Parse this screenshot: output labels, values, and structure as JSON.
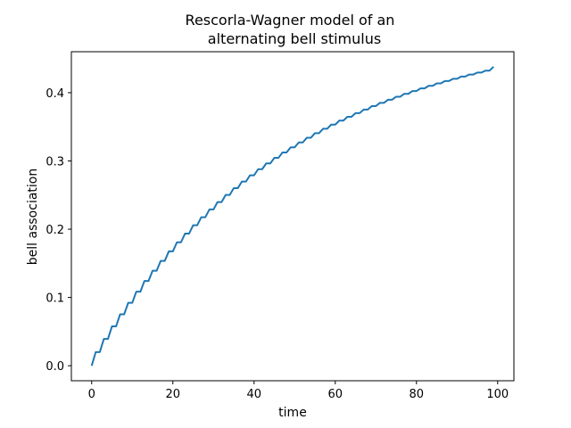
{
  "chart_data": {
    "type": "line",
    "title_line1": "Rescorla-Wagner model of an",
    "title_line2": "alternating bell stimulus",
    "xlabel": "time",
    "ylabel": "bell association",
    "xlim": [
      -5,
      104
    ],
    "ylim": [
      -0.022,
      0.46
    ],
    "xticks": [
      0,
      20,
      40,
      60,
      80,
      100
    ],
    "yticks": [
      0.0,
      0.1,
      0.2,
      0.3,
      0.4
    ],
    "ytick_labels": [
      "0.0",
      "0.1",
      "0.2",
      "0.3",
      "0.4"
    ],
    "series": [
      {
        "color": "#1f77b4",
        "x": [
          0,
          1,
          2,
          3,
          4,
          5,
          6,
          7,
          8,
          9,
          10,
          11,
          12,
          13,
          14,
          15,
          16,
          17,
          18,
          19,
          20,
          21,
          22,
          23,
          24,
          25,
          26,
          27,
          28,
          29,
          30,
          31,
          32,
          33,
          34,
          35,
          36,
          37,
          38,
          39,
          40,
          41,
          42,
          43,
          44,
          45,
          46,
          47,
          48,
          49,
          50,
          51,
          52,
          53,
          54,
          55,
          56,
          57,
          58,
          59,
          60,
          61,
          62,
          63,
          64,
          65,
          66,
          67,
          68,
          69,
          70,
          71,
          72,
          73,
          74,
          75,
          76,
          77,
          78,
          79,
          80,
          81,
          82,
          83,
          84,
          85,
          86,
          87,
          88,
          89,
          90,
          91,
          92,
          93,
          94,
          95,
          96,
          97,
          98,
          99
        ],
        "y": [
          0.0,
          0.02,
          0.02,
          0.0392,
          0.0392,
          0.0576,
          0.0576,
          0.0753,
          0.0753,
          0.0922,
          0.0922,
          0.1085,
          0.1085,
          0.1242,
          0.1242,
          0.1392,
          0.1392,
          0.1536,
          0.1536,
          0.1675,
          0.1675,
          0.1808,
          0.1808,
          0.1936,
          0.1936,
          0.2058,
          0.2058,
          0.2176,
          0.2176,
          0.2289,
          0.2289,
          0.2397,
          0.2397,
          0.2502,
          0.2502,
          0.2602,
          0.2602,
          0.2698,
          0.2698,
          0.279,
          0.279,
          0.2879,
          0.2879,
          0.2964,
          0.2964,
          0.3045,
          0.3045,
          0.3124,
          0.3124,
          0.3199,
          0.3199,
          0.3271,
          0.3271,
          0.334,
          0.334,
          0.3407,
          0.3407,
          0.3471,
          0.3471,
          0.3532,
          0.3532,
          0.3591,
          0.3591,
          0.3647,
          0.3647,
          0.3701,
          0.3701,
          0.3753,
          0.3753,
          0.3803,
          0.3803,
          0.3851,
          0.3851,
          0.3897,
          0.3897,
          0.3941,
          0.3941,
          0.3983,
          0.3983,
          0.4024,
          0.4024,
          0.4063,
          0.4063,
          0.41,
          0.41,
          0.4136,
          0.4136,
          0.4171,
          0.4171,
          0.4204,
          0.4204,
          0.4236,
          0.4236,
          0.4266,
          0.4266,
          0.4295,
          0.4295,
          0.4323,
          0.4323,
          0.438
        ]
      }
    ]
  }
}
